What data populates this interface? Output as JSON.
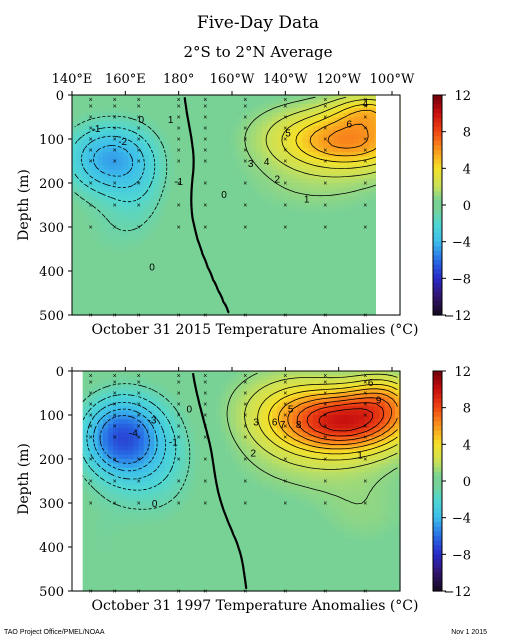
{
  "header": {
    "title": "Five-Day Data",
    "subtitle": "2°S to 2°N Average"
  },
  "colors": {
    "frame": "#000000",
    "contour": "#000000",
    "marker": "#000000",
    "mask": "#ffffff"
  },
  "chart_data": [
    {
      "type": "heatmap",
      "panel": "top",
      "caption": "October 31 2015 Temperature Anomalies (°C)",
      "ylabel": "Depth (m)",
      "x_ticks": [
        "140°E",
        "160°E",
        "180°",
        "160°W",
        "140°W",
        "120°W",
        "100°W"
      ],
      "x_tick_lons": [
        140,
        160,
        180,
        200,
        220,
        240,
        260
      ],
      "xlim": [
        140,
        263
      ],
      "y_ticks": [
        "0",
        "100",
        "200",
        "300",
        "400",
        "500"
      ],
      "y_tick_values": [
        0,
        100,
        200,
        300,
        400,
        500
      ],
      "ylim": [
        0,
        500
      ],
      "colorbar_ticks": [
        "12",
        "8",
        "4",
        "0",
        "−4",
        "−8",
        "−12"
      ],
      "colorbar_values": [
        12,
        8,
        4,
        0,
        -4,
        -8,
        -12
      ],
      "zlim": [
        -12,
        12
      ],
      "masked_east_of_lon": 254,
      "fields": [
        {
          "lon": 153,
          "depth": 145,
          "amp": -4.3,
          "sx": 11,
          "sy": 55
        },
        {
          "lon": 165,
          "depth": 200,
          "amp": -1.4,
          "sx": 8,
          "sy": 80
        },
        {
          "lon": 154,
          "depth": 310,
          "amp": -0.6,
          "sx": 10,
          "sy": 60
        },
        {
          "lon": 246,
          "depth": 105,
          "amp": 5.4,
          "sx": 17,
          "sy": 45
        },
        {
          "lon": 226,
          "depth": 90,
          "amp": 1.6,
          "sx": 16,
          "sy": 55
        },
        {
          "lon": 252,
          "depth": 35,
          "amp": 3.2,
          "sx": 10,
          "sy": 30
        },
        {
          "lon": 232,
          "depth": 210,
          "amp": 0.9,
          "sx": 22,
          "sy": 55
        }
      ],
      "contour_labels": [
        {
          "text": "0",
          "lon": 166,
          "depth": 55
        },
        {
          "text": "-1",
          "lon": 149,
          "depth": 75
        },
        {
          "text": "-2",
          "lon": 159,
          "depth": 105
        },
        {
          "text": "1",
          "lon": 177,
          "depth": 55
        },
        {
          "text": "-1",
          "lon": 180,
          "depth": 195
        },
        {
          "text": "0",
          "lon": 197,
          "depth": 225
        },
        {
          "text": "0",
          "lon": 170,
          "depth": 390
        },
        {
          "text": "3",
          "lon": 207,
          "depth": 155
        },
        {
          "text": "4",
          "lon": 213,
          "depth": 150
        },
        {
          "text": "5",
          "lon": 221,
          "depth": 85
        },
        {
          "text": "6",
          "lon": 244,
          "depth": 65
        },
        {
          "text": "4",
          "lon": 250,
          "depth": 18
        },
        {
          "text": "2",
          "lon": 217,
          "depth": 190
        },
        {
          "text": "1",
          "lon": 228,
          "depth": 235
        }
      ]
    },
    {
      "type": "heatmap",
      "panel": "bottom",
      "caption": "October 31 1997 Temperature Anomalies (°C)",
      "ylabel": "Depth (m)",
      "x_ticks": [
        "140°E",
        "160°E",
        "180°",
        "160°W",
        "140°W",
        "120°W",
        "100°W"
      ],
      "x_tick_lons": [
        140,
        160,
        180,
        200,
        220,
        240,
        260
      ],
      "xlim": [
        140,
        263
      ],
      "y_ticks": [
        "0",
        "100",
        "200",
        "300",
        "400",
        "500"
      ],
      "y_tick_values": [
        0,
        100,
        200,
        300,
        400,
        500
      ],
      "ylim": [
        0,
        500
      ],
      "colorbar_ticks": [
        "12",
        "8",
        "4",
        "0",
        "−4",
        "−8",
        "−12"
      ],
      "colorbar_values": [
        12,
        8,
        4,
        0,
        -4,
        -8,
        -12
      ],
      "zlim": [
        -12,
        12
      ],
      "masked_west_of_lon": 144,
      "fields": [
        {
          "lon": 158,
          "depth": 150,
          "amp": -6.0,
          "sx": 10,
          "sy": 60
        },
        {
          "lon": 170,
          "depth": 200,
          "amp": -2.0,
          "sx": 12,
          "sy": 90
        },
        {
          "lon": 151,
          "depth": 400,
          "amp": -0.5,
          "sx": 8,
          "sy": 90
        },
        {
          "lon": 243,
          "depth": 115,
          "amp": 8.4,
          "sx": 17,
          "sy": 48
        },
        {
          "lon": 257,
          "depth": 60,
          "amp": 3.2,
          "sx": 9,
          "sy": 40
        },
        {
          "lon": 222,
          "depth": 80,
          "amp": 2.4,
          "sx": 16,
          "sy": 65
        },
        {
          "lon": 232,
          "depth": 210,
          "amp": 1.2,
          "sx": 22,
          "sy": 60
        },
        {
          "lon": 250,
          "depth": 330,
          "amp": 0.8,
          "sx": 14,
          "sy": 60
        }
      ],
      "contour_labels": [
        {
          "text": "-3",
          "lon": 170,
          "depth": 110
        },
        {
          "text": "-4",
          "lon": 163,
          "depth": 140
        },
        {
          "text": "0",
          "lon": 184,
          "depth": 85
        },
        {
          "text": "-1",
          "lon": 178,
          "depth": 160
        },
        {
          "text": "0",
          "lon": 171,
          "depth": 300
        },
        {
          "text": "3",
          "lon": 209,
          "depth": 115
        },
        {
          "text": "5",
          "lon": 222,
          "depth": 85
        },
        {
          "text": "6",
          "lon": 216,
          "depth": 115
        },
        {
          "text": "7",
          "lon": 219,
          "depth": 120
        },
        {
          "text": "8",
          "lon": 225,
          "depth": 120
        },
        {
          "text": "9",
          "lon": 255,
          "depth": 65
        },
        {
          "text": "6",
          "lon": 252,
          "depth": 25
        },
        {
          "text": "2",
          "lon": 208,
          "depth": 185
        },
        {
          "text": "1",
          "lon": 248,
          "depth": 190
        }
      ]
    }
  ],
  "footer": {
    "left": "TAO Project Office/PMEL/NOAA",
    "right": "Nov  1 2015"
  }
}
